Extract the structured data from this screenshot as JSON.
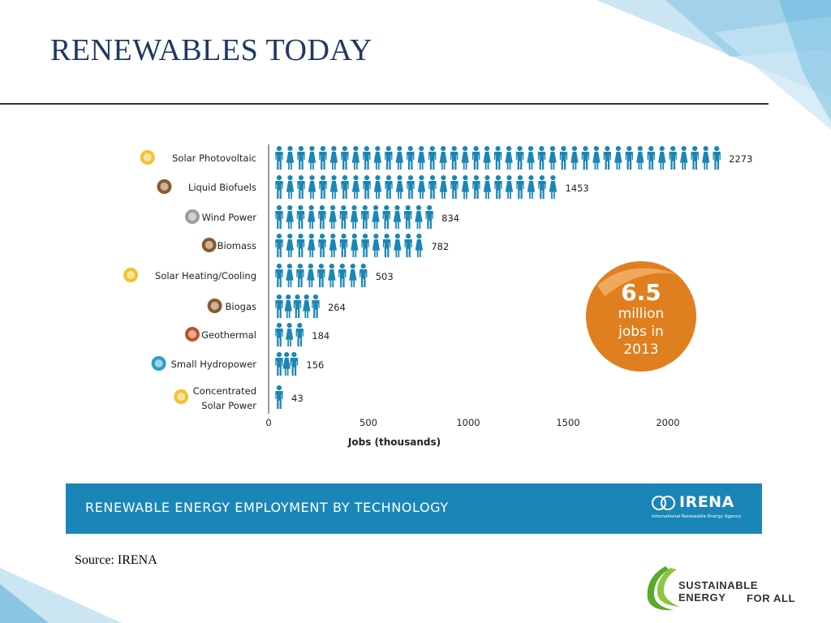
{
  "slide": {
    "title": "RENEWABLES TODAY",
    "source": "Source: IRENA"
  },
  "colors": {
    "person": "#1a86b7",
    "axis": "#9a9a9a",
    "badge": "#e07f1f",
    "banner": "#1a86b7",
    "title": "#1f3864"
  },
  "banner": {
    "title": "Renewable energy employment by technology",
    "logo_name": "IRENA",
    "logo_tagline": "International Renewable Energy Agency"
  },
  "badge": {
    "number": "6.5",
    "line1": "million",
    "line2": "jobs in",
    "line3": "2013"
  },
  "footer_logo": {
    "line1": "SUSTAINABLE ENERGY",
    "line2": "FOR ALL"
  },
  "chart_data": {
    "type": "bar",
    "orientation": "horizontal",
    "marker": "person-icon",
    "categories": [
      "Solar Photovoltaic",
      "Liquid Biofuels",
      "Wind Power",
      "Biomass",
      "Solar Heating/Cooling",
      "Biogas",
      "Geothermal",
      "Small Hydropower",
      "Concentrated Solar Power"
    ],
    "category_icons": [
      "sun-icon",
      "biofuel-drop-icon",
      "wind-icon",
      "biomass-leaf-icon",
      "sun-icon",
      "biogas-drop-icon",
      "geothermal-icon",
      "water-drop-icon",
      "sun-icon"
    ],
    "values": [
      2273,
      1453,
      834,
      782,
      503,
      264,
      184,
      156,
      43
    ],
    "value_labels": [
      "2273",
      "1453",
      "834",
      "782",
      "503",
      "264",
      "184",
      "156",
      "43"
    ],
    "xlabel": "Jobs (thousands)",
    "xticks": [
      0,
      500,
      1000,
      1500,
      2000
    ],
    "xlim": [
      0,
      2300
    ],
    "grid": false,
    "legend": "none"
  }
}
